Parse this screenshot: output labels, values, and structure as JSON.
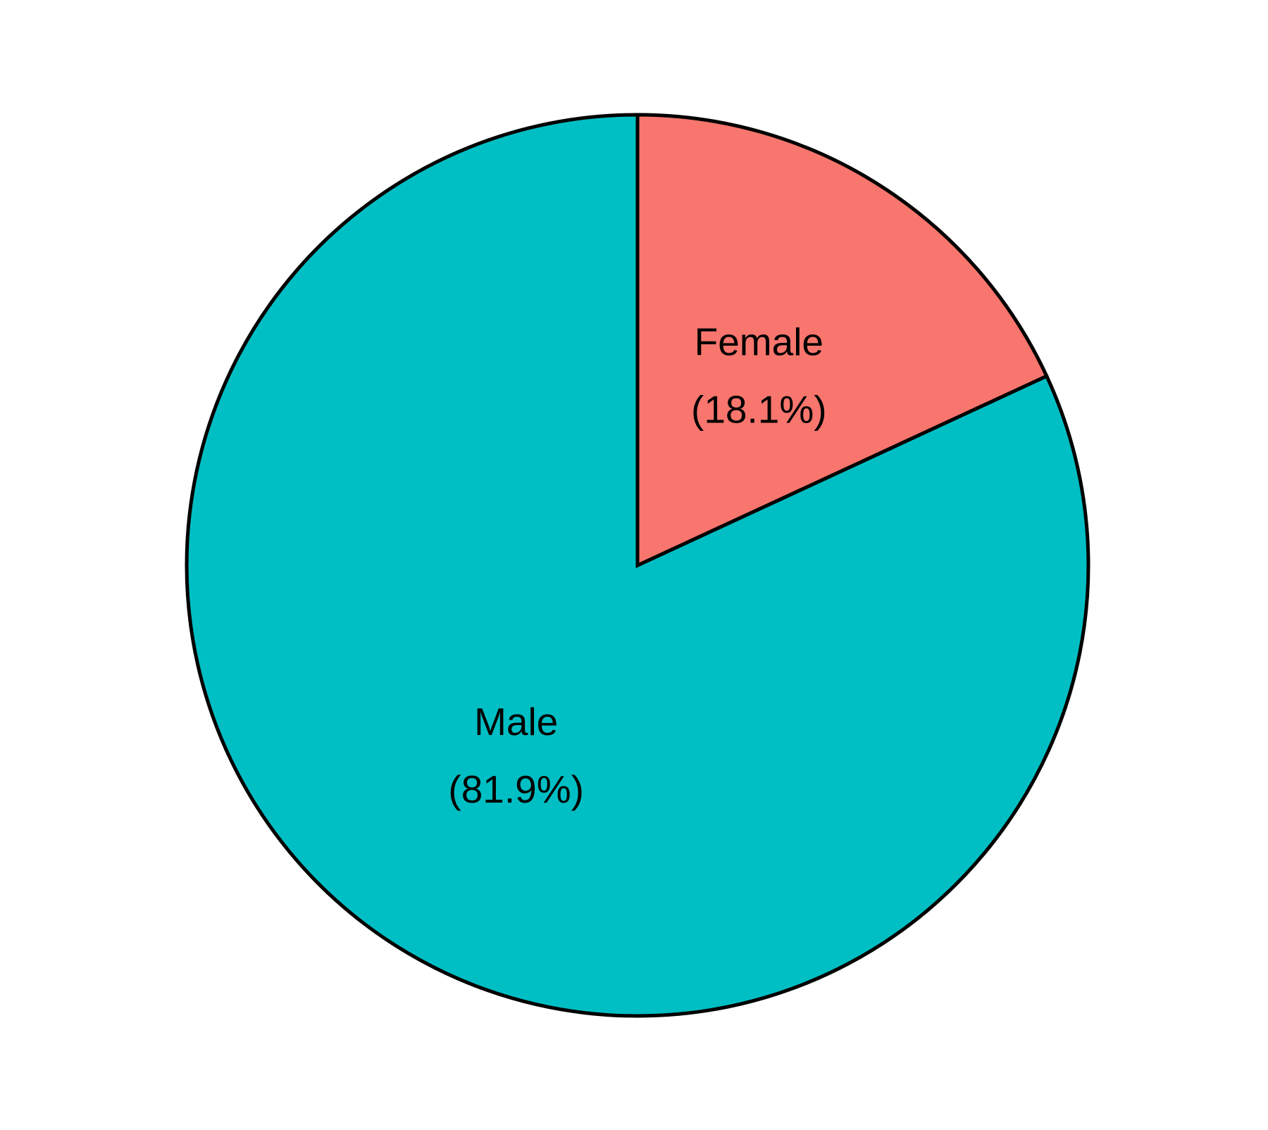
{
  "chart_data": {
    "type": "pie",
    "title": "",
    "slices": [
      {
        "label": "Male",
        "value": 81.9,
        "percent_label": "(81.9%)",
        "color": "#00BFC4"
      },
      {
        "label": "Female",
        "value": 18.1,
        "percent_label": "(18.1%)",
        "color": "#F8766D"
      }
    ],
    "start": "top",
    "direction": "counterclockwise",
    "outline_color": "#000000",
    "background": "#FFFFFF"
  }
}
